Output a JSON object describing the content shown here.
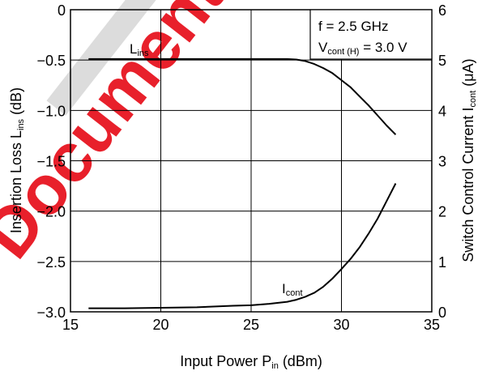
{
  "watermark_text": "Document",
  "colors": {
    "watermark": "#e8202b",
    "watermark_band": "#dcdcdc",
    "curve": "#000000",
    "grid": "#000000"
  },
  "chart_data": {
    "type": "line",
    "x": {
      "label_main": "Input Power  P",
      "label_sub": "in",
      "label_tail": " (dBm)",
      "range": [
        15,
        35
      ],
      "ticks": [
        15,
        20,
        25,
        30,
        35
      ]
    },
    "y_left": {
      "label_main": "Insertion Loss  L",
      "label_sub": "ins",
      "label_tail": " (dB)",
      "range": [
        -3.0,
        0
      ],
      "ticks": [
        0,
        -0.5,
        -1.0,
        -1.5,
        -2.0,
        -2.5,
        -3.0
      ],
      "tick_labels": [
        "0",
        "−0.5",
        "−1.0",
        "−1.5",
        "−2.0",
        "−2.5",
        "−3.0"
      ]
    },
    "y_right": {
      "label_main": "Switch Control Current  I",
      "label_sub": "cont",
      "label_tail": " (μA)",
      "range": [
        0,
        6
      ],
      "ticks": [
        0,
        1,
        2,
        3,
        4,
        5,
        6
      ]
    },
    "grid": true,
    "conditions": {
      "line1": "f = 2.5 GHz",
      "line2_main": "V",
      "line2_sub": "cont (H)",
      "line2_tail": " = 3.0 V"
    },
    "series": [
      {
        "name_main": "L",
        "name_sub": "ins",
        "axis": "left",
        "x": [
          16,
          18,
          20,
          22,
          24,
          26,
          27,
          27.5,
          28,
          28.5,
          29,
          29.5,
          30,
          30.5,
          31,
          31.5,
          32,
          32.5,
          33
        ],
        "y": [
          -0.49,
          -0.49,
          -0.49,
          -0.49,
          -0.49,
          -0.49,
          -0.49,
          -0.495,
          -0.51,
          -0.54,
          -0.58,
          -0.63,
          -0.7,
          -0.77,
          -0.86,
          -0.95,
          -1.05,
          -1.15,
          -1.24
        ]
      },
      {
        "name_main": "I",
        "name_sub": "cont",
        "axis": "right",
        "x": [
          16,
          18,
          20,
          22,
          24,
          25,
          26,
          27,
          27.5,
          28,
          28.5,
          29,
          29.5,
          30,
          30.5,
          31,
          31.5,
          32,
          32.5,
          33
        ],
        "y": [
          0.07,
          0.07,
          0.08,
          0.09,
          0.12,
          0.13,
          0.16,
          0.2,
          0.24,
          0.3,
          0.38,
          0.5,
          0.66,
          0.85,
          1.05,
          1.28,
          1.55,
          1.85,
          2.2,
          2.55
        ]
      }
    ]
  }
}
